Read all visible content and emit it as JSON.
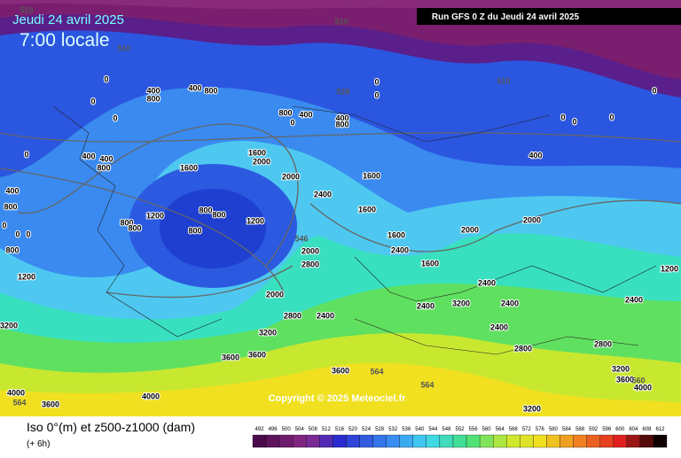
{
  "header": {
    "date": "Jeudi 24 avril 2025",
    "time": "7:00 locale",
    "run": "Run GFS 0 Z du Jeudi 24 avril 2025"
  },
  "footer": {
    "title": "Iso 0°(m) et z500-z1000 (dam)",
    "step": "(+ 6h)",
    "copyright": "Copyright © 2025 Meteociel.fr"
  },
  "colorbar": {
    "ticks": [
      492,
      496,
      500,
      504,
      508,
      512,
      516,
      520,
      524,
      528,
      532,
      536,
      540,
      544,
      548,
      552,
      556,
      560,
      564,
      568,
      572,
      576,
      580,
      584,
      588,
      592,
      596,
      600,
      604,
      608,
      612
    ]
  },
  "iso0_labels": [
    0,
    0,
    0,
    0,
    400,
    800,
    400,
    800,
    400,
    800,
    400,
    800,
    400,
    0,
    400,
    800,
    0,
    0,
    0,
    0,
    0,
    0,
    400,
    1600,
    2000,
    1600,
    2000,
    1600,
    2400,
    1600,
    1200,
    800,
    800,
    800,
    1200,
    800,
    800,
    2000,
    2000,
    1600,
    2000,
    2800,
    2400,
    1600,
    2400,
    3200,
    2400,
    2400,
    2400,
    2000,
    2800,
    3200,
    2400,
    2400,
    2800,
    2800,
    3600,
    3600,
    3600,
    4000,
    3600,
    4000,
    3200,
    3200,
    3600,
    4000,
    3200,
    1200,
    400,
    800,
    0,
    0,
    0,
    800,
    1200
  ],
  "z500_labels": [
    510,
    510,
    510,
    510,
    528,
    546,
    564,
    564,
    564,
    560
  ]
}
